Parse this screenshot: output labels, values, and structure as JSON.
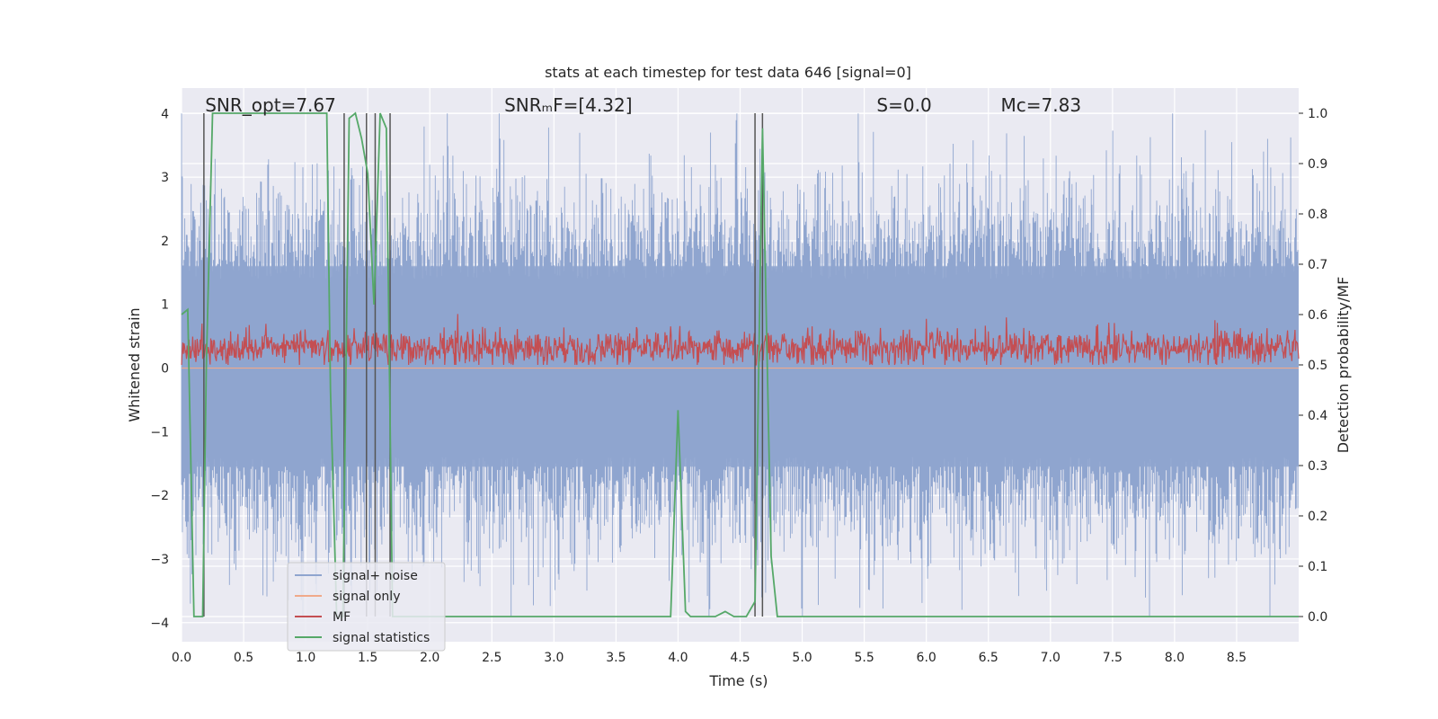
{
  "chart_data": {
    "type": "line",
    "title": "stats at each timestep for test data 646 [signal=0]",
    "xlabel": "Time (s)",
    "ylabel": "Whitened strain",
    "y2label": "Detection probability/MF",
    "xlim": [
      0.0,
      9.0
    ],
    "ylim": [
      -4.3,
      4.4
    ],
    "y2lim": [
      -0.05,
      1.05
    ],
    "xticks": [
      "0.0",
      "0.5",
      "1.0",
      "1.5",
      "2.0",
      "2.5",
      "3.0",
      "3.5",
      "4.0",
      "4.5",
      "5.0",
      "5.5",
      "6.0",
      "6.5",
      "7.0",
      "7.5",
      "8.0",
      "8.5"
    ],
    "xtick_values": [
      0.0,
      0.5,
      1.0,
      1.5,
      2.0,
      2.5,
      3.0,
      3.5,
      4.0,
      4.5,
      5.0,
      5.5,
      6.0,
      6.5,
      7.0,
      7.5,
      8.0,
      8.5
    ],
    "yticks": [
      "−4",
      "−3",
      "−2",
      "−1",
      "0",
      "1",
      "2",
      "3",
      "4"
    ],
    "ytick_values": [
      -4,
      -3,
      -2,
      -1,
      0,
      1,
      2,
      3,
      4
    ],
    "y2ticks": [
      "0.0",
      "0.1",
      "0.2",
      "0.3",
      "0.4",
      "0.5",
      "0.6",
      "0.7",
      "0.8",
      "0.9",
      "1.0"
    ],
    "y2tick_values": [
      0.0,
      0.1,
      0.2,
      0.3,
      0.4,
      0.5,
      0.6,
      0.7,
      0.8,
      0.9,
      1.0
    ],
    "annotations": [
      {
        "text": "SNR_opt=7.67",
        "x": 0.19
      },
      {
        "text": "SNRₘF=[4.32]",
        "x": 2.6
      },
      {
        "text": "S=0.0",
        "x": 5.6
      },
      {
        "text": "Mᴄ=7.83",
        "x": 6.6
      }
    ],
    "vlines": [
      0.18,
      1.31,
      1.49,
      1.56,
      1.68,
      4.62,
      4.68
    ],
    "series": [
      {
        "name": "signal+ noise",
        "color": "#8fa5cf",
        "axis": "left",
        "noise_band": [
          -1.55,
          1.6
        ],
        "spike_range": [
          -3.9,
          4.0
        ]
      },
      {
        "name": "signal only",
        "color": "#f0a98a",
        "axis": "left",
        "x": [
          0.0,
          9.0
        ],
        "y": [
          0.0,
          0.0
        ]
      },
      {
        "name": "MF",
        "color": "#c44e52",
        "axis": "left",
        "band": [
          0.05,
          0.95
        ]
      },
      {
        "name": "signal statistics",
        "color": "#55a868",
        "axis": "right",
        "x": [
          0.0,
          0.05,
          0.1,
          0.17,
          0.2,
          0.25,
          0.3,
          1.17,
          1.2,
          1.25,
          1.3,
          1.35,
          1.4,
          1.45,
          1.5,
          1.55,
          1.6,
          1.65,
          1.7,
          1.75,
          1.8,
          2.3,
          2.4,
          3.94,
          4.0,
          4.06,
          4.1,
          4.3,
          4.38,
          4.45,
          4.55,
          4.62,
          4.68,
          4.75,
          4.8,
          9.0
        ],
        "y": [
          0.6,
          0.61,
          0.0,
          0.0,
          0.5,
          1.0,
          1.0,
          1.0,
          0.45,
          0.0,
          0.0,
          0.99,
          1.0,
          0.95,
          0.88,
          0.62,
          1.0,
          0.97,
          0.0,
          0.0,
          0.0,
          0.0,
          0.0,
          0.0,
          0.41,
          0.01,
          0.0,
          0.0,
          0.01,
          0.0,
          0.0,
          0.03,
          0.97,
          0.12,
          0.0,
          0.0
        ]
      }
    ],
    "legend": [
      "signal+ noise",
      "signal only",
      "MF",
      "signal statistics"
    ],
    "legend_position": "lower-left",
    "grid": true
  }
}
